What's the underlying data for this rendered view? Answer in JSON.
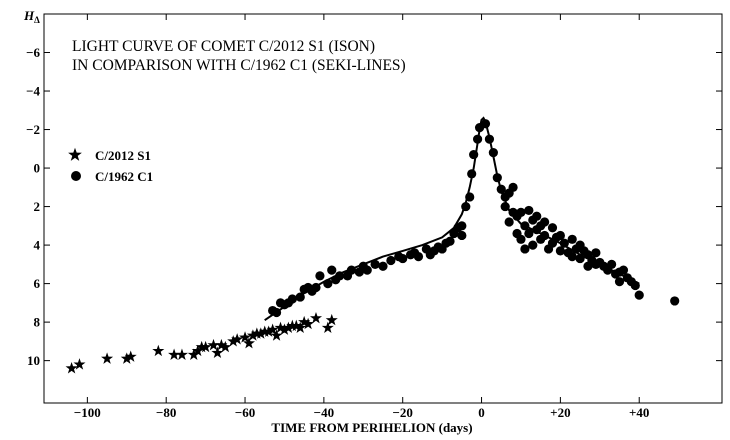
{
  "chart_data": {
    "type": "scatter",
    "title_lines": [
      "LIGHT CURVE OF COMET C/2012 S1 (ISON)",
      "IN COMPARISON WITH C/1962 C1 (SEKI-LINES)"
    ],
    "xlabel": "TIME FROM PERIHELION (days)",
    "ylabel": "H",
    "ylabel_subscript": "Δ",
    "xlim": [
      -111,
      61
    ],
    "ylim": [
      12.2,
      -8.0
    ],
    "y_inverted": true,
    "x_ticks": [
      {
        "value": -100,
        "label": "−100"
      },
      {
        "value": -80,
        "label": "−80"
      },
      {
        "value": -60,
        "label": "−60"
      },
      {
        "value": -40,
        "label": "−40"
      },
      {
        "value": -20,
        "label": "−20"
      },
      {
        "value": 0,
        "label": "0"
      },
      {
        "value": 20,
        "label": "+20"
      },
      {
        "value": 40,
        "label": "+40"
      }
    ],
    "y_ticks": [
      {
        "value": -6,
        "label": "−6"
      },
      {
        "value": -4,
        "label": "−4"
      },
      {
        "value": -2,
        "label": "−2"
      },
      {
        "value": 0,
        "label": "0"
      },
      {
        "value": 2,
        "label": "2"
      },
      {
        "value": 4,
        "label": "4"
      },
      {
        "value": 6,
        "label": "6"
      },
      {
        "value": 8,
        "label": "8"
      },
      {
        "value": 10,
        "label": "10"
      }
    ],
    "legend": {
      "placement": "left",
      "entries": [
        {
          "label": "C/2012 S1",
          "marker": "star"
        },
        {
          "label": "C/1962 C1",
          "marker": "circle"
        }
      ]
    },
    "series": [
      {
        "name": "C/2012 S1",
        "marker": "star",
        "points": [
          [
            -104,
            10.4
          ],
          [
            -102,
            10.2
          ],
          [
            -95,
            9.9
          ],
          [
            -90,
            9.9
          ],
          [
            -89,
            9.8
          ],
          [
            -82,
            9.5
          ],
          [
            -78,
            9.7
          ],
          [
            -76,
            9.7
          ],
          [
            -73,
            9.7
          ],
          [
            -72,
            9.5
          ],
          [
            -71,
            9.3
          ],
          [
            -70,
            9.3
          ],
          [
            -68,
            9.2
          ],
          [
            -67,
            9.6
          ],
          [
            -66,
            9.2
          ],
          [
            -65,
            9.3
          ],
          [
            -63,
            9.0
          ],
          [
            -62,
            8.9
          ],
          [
            -60,
            8.8
          ],
          [
            -59,
            9.1
          ],
          [
            -58,
            8.7
          ],
          [
            -57,
            8.6
          ],
          [
            -56,
            8.6
          ],
          [
            -55,
            8.5
          ],
          [
            -54,
            8.5
          ],
          [
            -53,
            8.4
          ],
          [
            -52,
            8.7
          ],
          [
            -51,
            8.3
          ],
          [
            -50,
            8.4
          ],
          [
            -49,
            8.3
          ],
          [
            -48,
            8.2
          ],
          [
            -47,
            8.2
          ],
          [
            -46,
            8.3
          ],
          [
            -45,
            8.0
          ],
          [
            -44,
            8.1
          ],
          [
            -42,
            7.8
          ],
          [
            -39,
            8.3
          ],
          [
            -38,
            7.9
          ]
        ]
      },
      {
        "name": "C/1962 C1",
        "marker": "circle",
        "points": [
          [
            -53,
            7.4
          ],
          [
            -52,
            7.5
          ],
          [
            -51,
            7.0
          ],
          [
            -50,
            7.1
          ],
          [
            -49,
            7.0
          ],
          [
            -48,
            6.8
          ],
          [
            -46,
            6.7
          ],
          [
            -45,
            6.3
          ],
          [
            -44,
            6.2
          ],
          [
            -43,
            6.4
          ],
          [
            -42,
            6.2
          ],
          [
            -41,
            5.6
          ],
          [
            -39,
            6.0
          ],
          [
            -38,
            5.3
          ],
          [
            -37,
            5.8
          ],
          [
            -36,
            5.6
          ],
          [
            -34,
            5.6
          ],
          [
            -33,
            5.3
          ],
          [
            -31,
            5.4
          ],
          [
            -30,
            5.1
          ],
          [
            -29,
            5.3
          ],
          [
            -27,
            5.0
          ],
          [
            -25,
            5.1
          ],
          [
            -23,
            4.8
          ],
          [
            -21,
            4.6
          ],
          [
            -20,
            4.7
          ],
          [
            -18,
            4.5
          ],
          [
            -17,
            4.4
          ],
          [
            -16,
            4.6
          ],
          [
            -14,
            4.2
          ],
          [
            -13,
            4.5
          ],
          [
            -12,
            4.3
          ],
          [
            -11,
            4.1
          ],
          [
            -10,
            4.2
          ],
          [
            -9,
            3.9
          ],
          [
            -8,
            3.8
          ],
          [
            -7,
            3.4
          ],
          [
            -6,
            3.1
          ],
          [
            -5,
            3.0
          ],
          [
            -5,
            3.5
          ],
          [
            -4,
            2.0
          ],
          [
            -3,
            1.5
          ],
          [
            -2.5,
            0.3
          ],
          [
            -2,
            -0.7
          ],
          [
            -1,
            -1.5
          ],
          [
            -0.5,
            -2.1
          ],
          [
            1,
            -2.3
          ],
          [
            2,
            -1.5
          ],
          [
            3,
            -0.8
          ],
          [
            4,
            0.5
          ],
          [
            5,
            1.1
          ],
          [
            6,
            2.0
          ],
          [
            6,
            1.5
          ],
          [
            7,
            1.3
          ],
          [
            7,
            2.8
          ],
          [
            8,
            2.3
          ],
          [
            8,
            1.0
          ],
          [
            9,
            2.5
          ],
          [
            9,
            3.4
          ],
          [
            10,
            2.3
          ],
          [
            10,
            3.7
          ],
          [
            11,
            3.0
          ],
          [
            11,
            4.2
          ],
          [
            12,
            2.2
          ],
          [
            12,
            3.4
          ],
          [
            13,
            2.7
          ],
          [
            13,
            4.0
          ],
          [
            14,
            2.5
          ],
          [
            14,
            3.2
          ],
          [
            15,
            3.0
          ],
          [
            15,
            3.7
          ],
          [
            16,
            2.8
          ],
          [
            16,
            3.5
          ],
          [
            17,
            4.2
          ],
          [
            18,
            3.1
          ],
          [
            18,
            3.9
          ],
          [
            19,
            3.6
          ],
          [
            20,
            3.5
          ],
          [
            20,
            4.3
          ],
          [
            21,
            3.9
          ],
          [
            22,
            4.4
          ],
          [
            23,
            3.7
          ],
          [
            23,
            4.6
          ],
          [
            24,
            4.2
          ],
          [
            25,
            4.0
          ],
          [
            25,
            4.7
          ],
          [
            26,
            4.3
          ],
          [
            27,
            4.5
          ],
          [
            27,
            5.1
          ],
          [
            28,
            4.8
          ],
          [
            29,
            4.4
          ],
          [
            29,
            5.0
          ],
          [
            30,
            4.9
          ],
          [
            31,
            5.1
          ],
          [
            32,
            5.3
          ],
          [
            33,
            5.0
          ],
          [
            34,
            5.5
          ],
          [
            35,
            5.4
          ],
          [
            35,
            5.9
          ],
          [
            36,
            5.3
          ],
          [
            37,
            5.7
          ],
          [
            38,
            5.9
          ],
          [
            39,
            6.1
          ],
          [
            40,
            6.6
          ],
          [
            49,
            6.9
          ]
        ]
      },
      {
        "name": "",
        "marker": "line",
        "points": [
          [
            -55,
            7.9
          ],
          [
            -50,
            7.2
          ],
          [
            -45,
            6.5
          ],
          [
            -40,
            5.9
          ],
          [
            -35,
            5.4
          ],
          [
            -30,
            5.0
          ],
          [
            -25,
            4.6
          ],
          [
            -20,
            4.3
          ],
          [
            -15,
            4.0
          ],
          [
            -10,
            3.6
          ],
          [
            -7,
            3.1
          ],
          [
            -5,
            2.4
          ],
          [
            -4,
            1.8
          ],
          [
            -3,
            1.0
          ],
          [
            -2,
            0.0
          ],
          [
            -1,
            -1.3
          ],
          [
            -0.5,
            -2.0
          ],
          [
            0,
            -2.5
          ],
          [
            0.5,
            -2.6
          ],
          [
            1,
            -2.4
          ],
          [
            2,
            -1.6
          ],
          [
            3,
            -0.6
          ],
          [
            4,
            0.4
          ],
          [
            5,
            1.2
          ],
          [
            7,
            2.2
          ],
          [
            10,
            2.9
          ],
          [
            15,
            3.4
          ],
          [
            20,
            3.9
          ],
          [
            25,
            4.5
          ],
          [
            30,
            5.0
          ],
          [
            35,
            5.5
          ],
          [
            40,
            6.0
          ]
        ]
      }
    ]
  }
}
